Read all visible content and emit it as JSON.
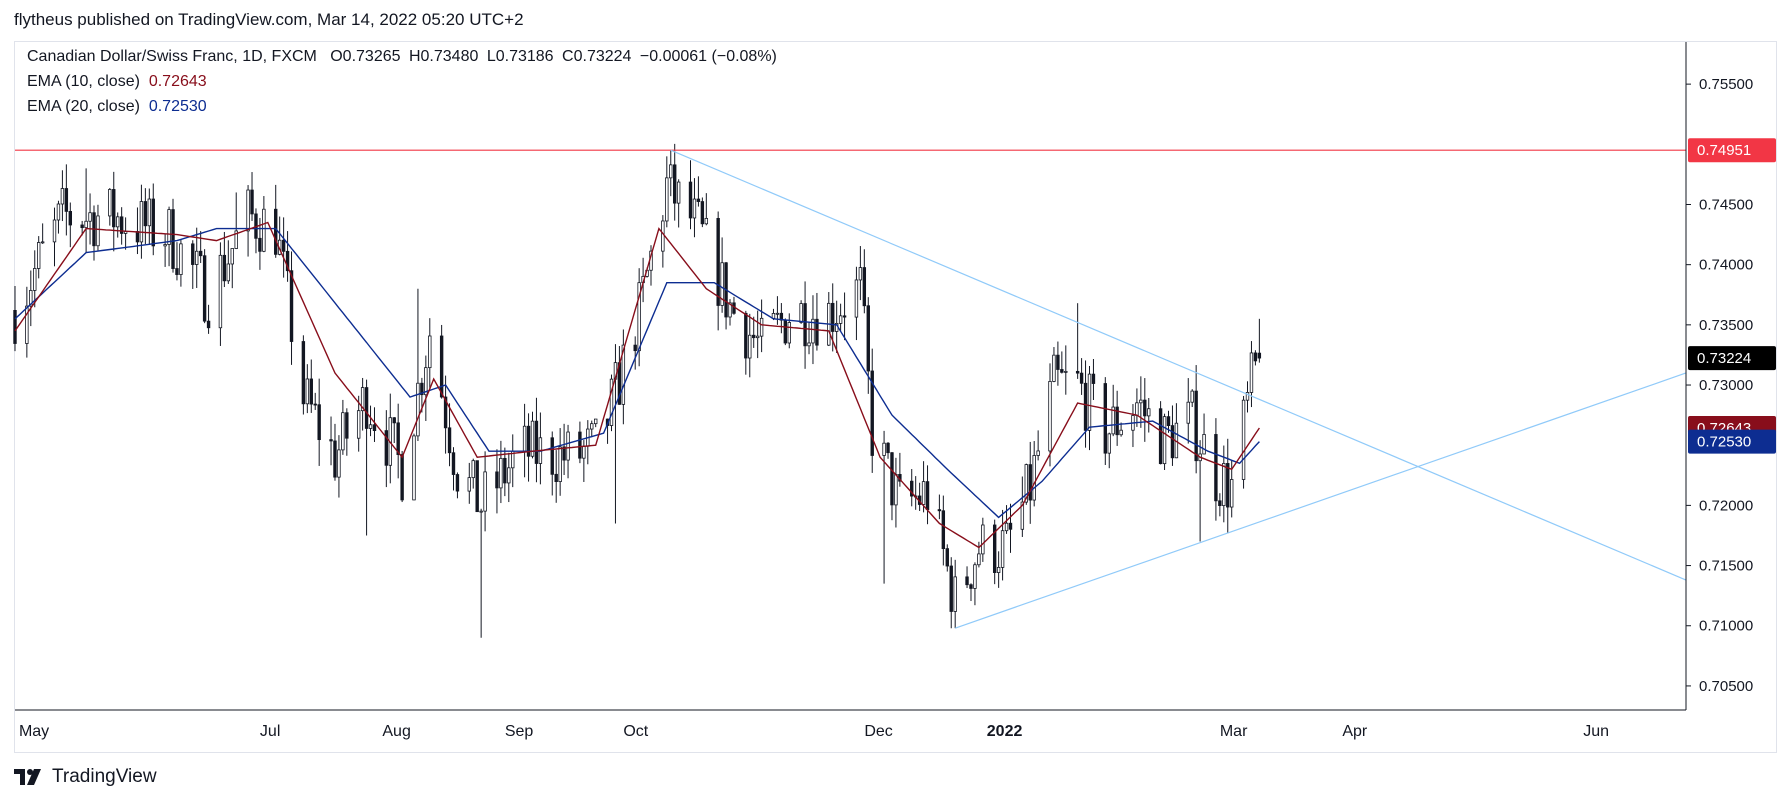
{
  "header": {
    "published_line": "flytheus published on TradingView.com, Mar 14, 2022 05:20 UTC+2"
  },
  "legend": {
    "symbol": "Canadian Dollar/Swiss Franc, 1D, FXCM",
    "o_label": "O",
    "o_value": "0.73265",
    "h_label": "H",
    "h_value": "0.73480",
    "l_label": "L",
    "l_value": "0.73186",
    "c_label": "C",
    "c_value": "0.73224",
    "change": "−0.00061 (−0.08%)",
    "ema10_label": "EMA (10, close)",
    "ema10_value": "0.72643",
    "ema20_label": "EMA (20, close)",
    "ema20_value": "0.72530"
  },
  "footer": {
    "brand": "TradingView"
  },
  "colors": {
    "candle": "#131722",
    "ema10": "#880e1b",
    "ema20": "#0d2d91",
    "trendline": "#90caf9",
    "hline": "#f23645",
    "last_price": "#000000"
  },
  "chart_data": {
    "type": "candlestick",
    "y_ticks": [
      "0.75500",
      "0.74500",
      "0.74000",
      "0.73500",
      "0.73000",
      "0.72000",
      "0.71500",
      "0.71000",
      "0.70500"
    ],
    "x_ticks": [
      "May",
      "Jul",
      "Aug",
      "Sep",
      "Oct",
      "Dec",
      "2022",
      "Mar",
      "Apr",
      "Jun"
    ],
    "x_tick_dates": [
      "2021-05-01",
      "2021-07-01",
      "2021-08-01",
      "2021-09-01",
      "2021-10-01",
      "2021-12-01",
      "2022-01-01",
      "2022-03-01",
      "2022-04-01",
      "2022-06-01"
    ],
    "x_range": [
      "2021-04-30",
      "2022-06-27"
    ],
    "y_range": [
      0.703,
      0.7585
    ],
    "price_tags": [
      {
        "label": "0.74951",
        "value": 0.74951,
        "color": "#f23645"
      },
      {
        "label": "0.73224",
        "value": 0.73224,
        "color": "#000000"
      },
      {
        "label": "0.72643",
        "value": 0.72643,
        "color": "#880e1b"
      },
      {
        "label": "0.72530",
        "value": 0.7253,
        "color": "#0d2d91"
      }
    ],
    "horizontal_line": 0.74951,
    "trendlines": [
      {
        "from": [
          "2021-10-13",
          0.74951
        ],
        "to": [
          "2022-06-27",
          0.7138
        ]
      },
      {
        "from": [
          "2021-12-24",
          0.7098
        ],
        "to": [
          "2022-06-27",
          0.731
        ]
      }
    ],
    "ema_keypoints": {
      "ema10": [
        [
          "2021-04-30",
          0.7345
        ],
        [
          "2021-05-18",
          0.743
        ],
        [
          "2021-06-10",
          0.7425
        ],
        [
          "2021-06-20",
          0.742
        ],
        [
          "2021-07-03",
          0.7435
        ],
        [
          "2021-07-20",
          0.731
        ],
        [
          "2021-08-06",
          0.724
        ],
        [
          "2021-08-14",
          0.7305
        ],
        [
          "2021-08-25",
          0.724
        ],
        [
          "2021-09-08",
          0.7245
        ],
        [
          "2021-09-24",
          0.725
        ],
        [
          "2021-10-10",
          0.743
        ],
        [
          "2021-10-22",
          0.738
        ],
        [
          "2021-11-05",
          0.735
        ],
        [
          "2021-11-22",
          0.7345
        ],
        [
          "2021-12-05",
          0.724
        ],
        [
          "2021-12-20",
          0.7185
        ],
        [
          "2021-12-30",
          0.7165
        ],
        [
          "2022-01-10",
          0.72
        ],
        [
          "2022-01-24",
          0.7285
        ],
        [
          "2022-02-08",
          0.7275
        ],
        [
          "2022-02-24",
          0.724
        ],
        [
          "2022-03-04",
          0.723
        ],
        [
          "2022-03-11",
          0.72643
        ]
      ],
      "ema20": [
        [
          "2021-04-30",
          0.7355
        ],
        [
          "2021-05-18",
          0.741
        ],
        [
          "2021-06-10",
          0.742
        ],
        [
          "2021-06-20",
          0.743
        ],
        [
          "2021-07-05",
          0.743
        ],
        [
          "2021-07-22",
          0.736
        ],
        [
          "2021-08-08",
          0.729
        ],
        [
          "2021-08-17",
          0.73
        ],
        [
          "2021-08-28",
          0.7245
        ],
        [
          "2021-09-10",
          0.7245
        ],
        [
          "2021-09-26",
          0.726
        ],
        [
          "2021-10-12",
          0.7385
        ],
        [
          "2021-10-24",
          0.7385
        ],
        [
          "2021-11-08",
          0.7355
        ],
        [
          "2021-11-24",
          0.735
        ],
        [
          "2021-12-08",
          0.7275
        ],
        [
          "2021-12-22",
          0.723
        ],
        [
          "2022-01-04",
          0.719
        ],
        [
          "2022-01-15",
          0.722
        ],
        [
          "2022-01-27",
          0.7265
        ],
        [
          "2022-02-12",
          0.727
        ],
        [
          "2022-02-26",
          0.7245
        ],
        [
          "2022-03-06",
          0.7235
        ],
        [
          "2022-03-11",
          0.7253
        ]
      ]
    },
    "close_keypoints": [
      [
        "2021-04-30",
        0.7362
      ],
      [
        "2021-05-12",
        0.744
      ],
      [
        "2021-05-25",
        0.744
      ],
      [
        "2021-06-08",
        0.7425
      ],
      [
        "2021-06-18",
        0.7375
      ],
      [
        "2021-06-28",
        0.744
      ],
      [
        "2021-07-05",
        0.743
      ],
      [
        "2021-07-12",
        0.729
      ],
      [
        "2021-07-20",
        0.724
      ],
      [
        "2021-07-28",
        0.729
      ],
      [
        "2021-08-06",
        0.723
      ],
      [
        "2021-08-13",
        0.7345
      ],
      [
        "2021-08-20",
        0.723
      ],
      [
        "2021-08-26",
        0.72
      ],
      [
        "2021-09-05",
        0.7245
      ],
      [
        "2021-09-18",
        0.724
      ],
      [
        "2021-09-25",
        0.725
      ],
      [
        "2021-10-05",
        0.736
      ],
      [
        "2021-10-12",
        0.7465
      ],
      [
        "2021-10-20",
        0.743
      ],
      [
        "2021-10-28",
        0.7365
      ],
      [
        "2021-11-05",
        0.733
      ],
      [
        "2021-11-12",
        0.736
      ],
      [
        "2021-11-22",
        0.736
      ],
      [
        "2021-11-30",
        0.738
      ],
      [
        "2021-12-03",
        0.726
      ],
      [
        "2021-12-10",
        0.72
      ],
      [
        "2021-12-17",
        0.721
      ],
      [
        "2021-12-24",
        0.712
      ],
      [
        "2021-12-30",
        0.7165
      ],
      [
        "2022-01-06",
        0.7165
      ],
      [
        "2022-01-12",
        0.7215
      ],
      [
        "2022-01-18",
        0.73
      ],
      [
        "2022-01-24",
        0.73
      ],
      [
        "2022-01-31",
        0.726
      ],
      [
        "2022-02-08",
        0.7285
      ],
      [
        "2022-02-15",
        0.7255
      ],
      [
        "2022-02-22",
        0.727
      ],
      [
        "2022-02-28",
        0.7225
      ],
      [
        "2022-03-04",
        0.7215
      ],
      [
        "2022-03-09",
        0.73
      ],
      [
        "2022-03-11",
        0.73224
      ]
    ],
    "wick_extremes": {
      "high": [
        [
          "2021-05-18",
          0.748
        ],
        [
          "2021-06-25",
          0.746
        ],
        [
          "2021-08-10",
          0.738
        ],
        [
          "2021-10-13",
          0.74951
        ],
        [
          "2021-11-20",
          0.742
        ],
        [
          "2022-01-24",
          0.7368
        ],
        [
          "2022-03-11",
          0.7355
        ]
      ],
      "low": [
        [
          "2021-07-28",
          0.7175
        ],
        [
          "2021-08-26",
          0.709
        ],
        [
          "2021-09-29",
          0.7185
        ],
        [
          "2021-12-06",
          0.7135
        ],
        [
          "2021-12-24",
          0.7098
        ],
        [
          "2022-01-02",
          0.713
        ],
        [
          "2022-02-24",
          0.717
        ],
        [
          "2022-03-04",
          0.719
        ]
      ]
    }
  }
}
